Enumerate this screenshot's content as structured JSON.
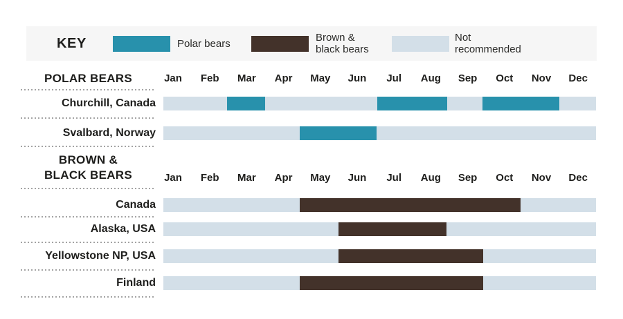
{
  "key": {
    "title": "KEY",
    "items": [
      {
        "label_lines": [
          "Polar bears"
        ],
        "color": "#2891ac"
      },
      {
        "label_lines": [
          "Brown &",
          "black bears"
        ],
        "color": "#43322a"
      },
      {
        "label_lines": [
          "Not",
          "recommended"
        ],
        "color": "#d3dfe8"
      }
    ]
  },
  "colors": {
    "polar_bears": "#2891ac",
    "brown_black_bears": "#43322a",
    "not_recommended": "#d3dfe8",
    "key_background": "#f6f6f6",
    "text": "#1e1e1c",
    "dotted_line": "#a3a3a3",
    "page_background": "#ffffff"
  },
  "chart_data": {
    "type": "bar",
    "subtype": "seasonal-range-timeline",
    "title": "",
    "months": [
      "Jan",
      "Feb",
      "Mar",
      "Apr",
      "May",
      "Jun",
      "Jul",
      "Aug",
      "Sep",
      "Oct",
      "Nov",
      "Dec"
    ],
    "axis_range_months": [
      0,
      12
    ],
    "grid": false,
    "legend_position": "top",
    "legend": [
      {
        "label": "Polar bears",
        "color": "#2891ac"
      },
      {
        "label": "Brown & black bears",
        "color": "#43322a"
      },
      {
        "label": "Not recommended",
        "color": "#d3dfe8"
      }
    ],
    "sections": [
      {
        "title_lines": [
          "POLAR BEARS"
        ],
        "series_color": "#2891ac",
        "rows": [
          {
            "label": "Churchill, Canada",
            "recommended": [
              {
                "start": 1.77,
                "end": 2.82,
                "approx": "Mar"
              },
              {
                "start": 5.93,
                "end": 7.87,
                "approx": "Jul–Aug"
              },
              {
                "start": 8.85,
                "end": 10.98,
                "approx": "Oct–Nov"
              }
            ]
          },
          {
            "label": "Svalbard, Norway",
            "recommended": [
              {
                "start": 3.78,
                "end": 5.91,
                "approx": "May–Jun"
              }
            ]
          }
        ]
      },
      {
        "title_lines": [
          "BROWN &",
          "BLACK BEARS"
        ],
        "series_color": "#43322a",
        "rows": [
          {
            "label": "Canada",
            "recommended": [
              {
                "start": 3.78,
                "end": 9.91,
                "approx": "May–Oct"
              }
            ]
          },
          {
            "label": "Alaska, USA",
            "recommended": [
              {
                "start": 4.86,
                "end": 7.85,
                "approx": "Jun–Aug"
              }
            ]
          },
          {
            "label": "Yellowstone NP, USA",
            "recommended": [
              {
                "start": 4.86,
                "end": 8.87,
                "approx": "Jun–Sep"
              }
            ]
          },
          {
            "label": "Finland",
            "recommended": [
              {
                "start": 3.78,
                "end": 8.87,
                "approx": "May–Sep"
              }
            ]
          }
        ]
      }
    ]
  }
}
